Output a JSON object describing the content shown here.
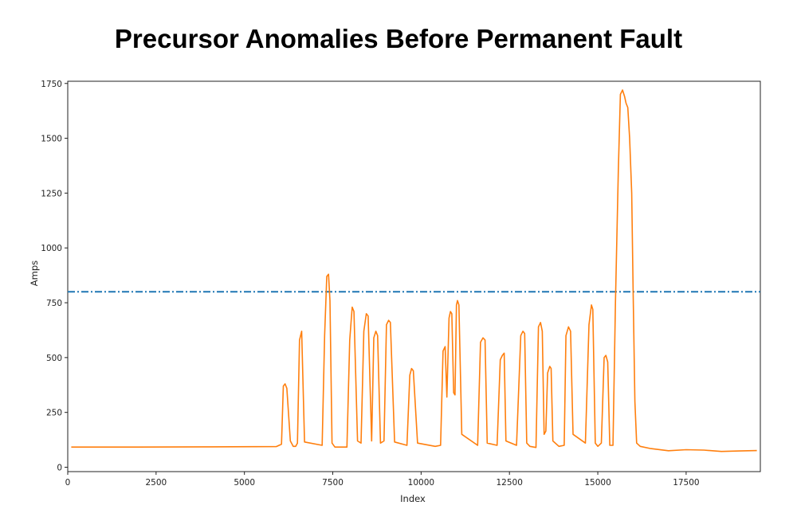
{
  "chart_data": {
    "type": "line",
    "title": "Precursor Anomalies Before Permanent Fault",
    "xlabel": "Index",
    "ylabel": "Amps",
    "xlim": [
      0,
      19600
    ],
    "ylim": [
      -20,
      1760
    ],
    "xticks": [
      0,
      2500,
      5000,
      7500,
      10000,
      12500,
      15000,
      17500
    ],
    "yticks": [
      0,
      250,
      500,
      750,
      1000,
      1250,
      1500,
      1750
    ],
    "threshold": {
      "y": 800,
      "color": "#1f77b4",
      "style": "dash-dot"
    },
    "series": [
      {
        "color": "#ff7f0e",
        "x": [
          100,
          2000,
          4000,
          5900,
          6050,
          6100,
          6150,
          6200,
          6300,
          6380,
          6450,
          6500,
          6560,
          6620,
          6700,
          7200,
          7270,
          7330,
          7380,
          7420,
          7480,
          7560,
          7900,
          7980,
          8050,
          8100,
          8200,
          8300,
          8380,
          8450,
          8500,
          8600,
          8660,
          8720,
          8770,
          8850,
          8950,
          9020,
          9080,
          9130,
          9250,
          9600,
          9680,
          9730,
          9780,
          9900,
          10400,
          10550,
          10620,
          10680,
          10730,
          10790,
          10830,
          10870,
          10920,
          10960,
          11000,
          11030,
          11070,
          11150,
          11600,
          11680,
          11750,
          11810,
          11870,
          12150,
          12240,
          12300,
          12350,
          12400,
          12700,
          12820,
          12880,
          12930,
          12990,
          13080,
          13250,
          13320,
          13380,
          13430,
          13480,
          13530,
          13580,
          13640,
          13680,
          13730,
          13900,
          14050,
          14100,
          14170,
          14230,
          14300,
          14650,
          14750,
          14820,
          14860,
          14930,
          15000,
          15100,
          15180,
          15230,
          15280,
          15340,
          15430,
          15500,
          15580,
          15640,
          15700,
          15760,
          15800,
          15850,
          15900,
          15960,
          16000,
          16050,
          16100,
          16200,
          16500,
          17000,
          17500,
          18000,
          18500,
          19000,
          19500
        ],
        "values": [
          92,
          92,
          93,
          94,
          105,
          370,
          380,
          360,
          120,
          95,
          95,
          110,
          580,
          620,
          115,
          100,
          600,
          870,
          880,
          760,
          110,
          92,
          92,
          580,
          730,
          710,
          120,
          110,
          620,
          700,
          690,
          120,
          590,
          620,
          600,
          110,
          120,
          650,
          670,
          660,
          115,
          100,
          420,
          450,
          440,
          110,
          95,
          100,
          530,
          550,
          320,
          680,
          710,
          700,
          340,
          330,
          740,
          760,
          740,
          150,
          100,
          570,
          590,
          580,
          110,
          100,
          490,
          510,
          520,
          120,
          100,
          600,
          620,
          610,
          110,
          95,
          90,
          640,
          660,
          620,
          150,
          165,
          430,
          460,
          450,
          120,
          95,
          100,
          600,
          640,
          620,
          150,
          110,
          650,
          740,
          720,
          110,
          95,
          110,
          500,
          510,
          480,
          100,
          100,
          750,
          1350,
          1700,
          1720,
          1690,
          1660,
          1640,
          1500,
          1250,
          800,
          300,
          110,
          95,
          85,
          75,
          80,
          78,
          72,
          74,
          76
        ]
      }
    ]
  }
}
